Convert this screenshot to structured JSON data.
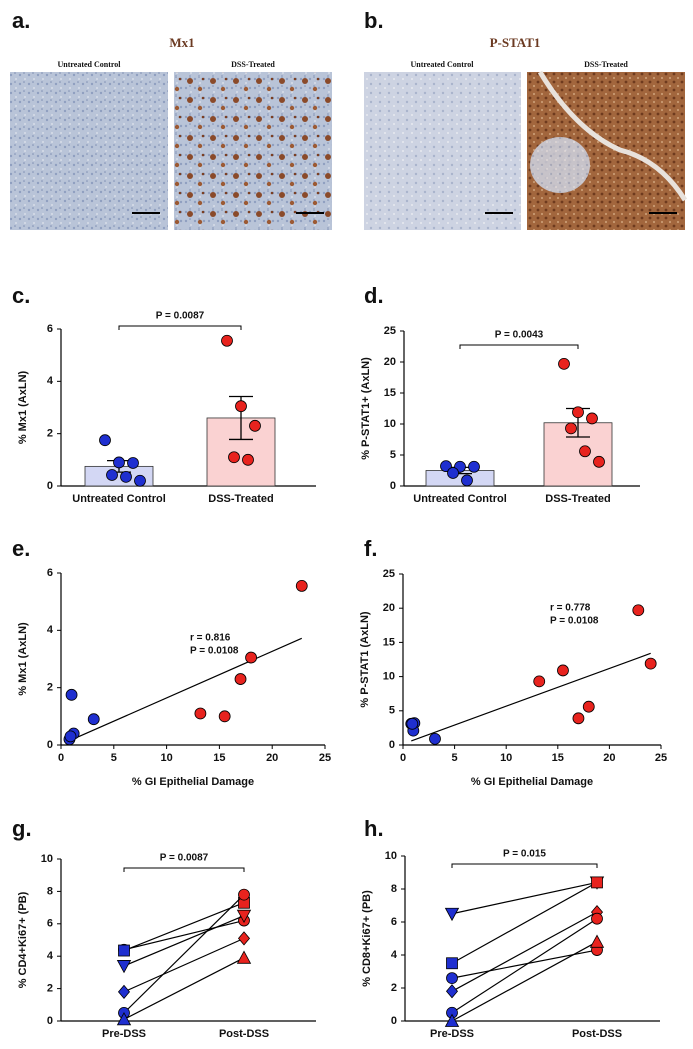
{
  "image_panels": [
    {
      "panel_label": "a.",
      "title": "Mx1",
      "images": [
        {
          "caption": "Untreated Control"
        },
        {
          "caption": "DSS-Treated"
        }
      ]
    },
    {
      "panel_label": "b.",
      "title": "P-STAT1",
      "images": [
        {
          "caption": "Untreated Control"
        },
        {
          "caption": "DSS-Treated"
        }
      ]
    }
  ],
  "chart_data": [
    {
      "type": "bar",
      "panel_label": "c.",
      "ylabel": "% Mx1  (AxLN)",
      "categories": [
        "Untreated Control",
        "DSS-Treated"
      ],
      "values": [
        0.75,
        2.6
      ],
      "errors": [
        0.22,
        0.82
      ],
      "points": [
        [
          1.75,
          0.9,
          0.88,
          0.42,
          0.35,
          0.2
        ],
        [
          5.55,
          3.05,
          2.3,
          1.1,
          1.0
        ]
      ],
      "bar_colors": [
        "#d3d7f4",
        "#fad2d2"
      ],
      "point_colors": [
        "#1f2fd0",
        "#e8231e"
      ],
      "annotation": "P = 0.0087",
      "ylim": [
        0,
        6
      ],
      "yticks": [
        0,
        2,
        4,
        6
      ]
    },
    {
      "type": "bar",
      "panel_label": "d.",
      "ylabel": "% P-STAT1+ (AxLN)",
      "categories": [
        "Untreated Control",
        "DSS-Treated"
      ],
      "values": [
        2.5,
        10.2
      ],
      "errors": [
        0.5,
        2.3
      ],
      "points": [
        [
          3.2,
          3.1,
          3.1,
          2.1,
          0.9
        ],
        [
          19.7,
          11.9,
          10.9,
          9.3,
          5.6,
          3.9
        ]
      ],
      "bar_colors": [
        "#d3d7f4",
        "#fad2d2"
      ],
      "point_colors": [
        "#1f2fd0",
        "#e8231e"
      ],
      "annotation": "P = 0.0043",
      "ylim": [
        0,
        25
      ],
      "yticks": [
        0,
        5,
        10,
        15,
        20,
        25
      ]
    },
    {
      "type": "scatter",
      "panel_label": "e.",
      "ylabel": "% Mx1 (AxLN)",
      "xlabel": "% GI Epithelial Damage",
      "series": [
        {
          "color": "#1f2fd0",
          "x": [
            1.0,
            1.2,
            0.8,
            0.9,
            3.1
          ],
          "y": [
            1.75,
            0.4,
            0.2,
            0.3,
            0.9
          ]
        },
        {
          "color": "#e8231e",
          "x": [
            13.2,
            15.5,
            17.0,
            18.0,
            22.8
          ],
          "y": [
            1.1,
            1.0,
            2.3,
            3.05,
            5.55
          ]
        }
      ],
      "fit": {
        "x": [
          0.8,
          22.8
        ],
        "y": [
          0.15,
          3.72
        ]
      },
      "annotations": [
        "r = 0.816",
        "P = 0.0108"
      ],
      "xlim": [
        0,
        25
      ],
      "xticks": [
        0,
        5,
        10,
        15,
        20,
        25
      ],
      "ylim": [
        0,
        6
      ],
      "yticks": [
        0,
        2,
        4,
        6
      ]
    },
    {
      "type": "scatter",
      "panel_label": "f.",
      "ylabel": "% P-STAT1 (AxLN)",
      "xlabel": "% GI Epithelial Damage",
      "series": [
        {
          "color": "#1f2fd0",
          "x": [
            0.8,
            1.1,
            1.0,
            0.9,
            3.1
          ],
          "y": [
            3.1,
            3.2,
            2.1,
            3.1,
            0.9
          ]
        },
        {
          "color": "#e8231e",
          "x": [
            13.2,
            15.5,
            17.0,
            18.0,
            22.8,
            24.0
          ],
          "y": [
            9.3,
            10.9,
            3.9,
            5.6,
            19.7,
            11.9
          ]
        }
      ],
      "fit": {
        "x": [
          0.8,
          24.0
        ],
        "y": [
          0.6,
          13.4
        ]
      },
      "annotations": [
        "r = 0.778",
        "P = 0.0108"
      ],
      "xlim": [
        0,
        25
      ],
      "xticks": [
        0,
        5,
        10,
        15,
        20,
        25
      ],
      "ylim": [
        0,
        25
      ],
      "yticks": [
        0,
        5,
        10,
        15,
        20,
        25
      ]
    },
    {
      "type": "paired",
      "panel_label": "g.",
      "ylabel": "% CD4+Ki67+ (PB)",
      "categories": [
        "Pre-DSS",
        "Post-DSS"
      ],
      "colors": [
        "#1f2fd0",
        "#e8231e"
      ],
      "series": [
        {
          "marker": "circle",
          "values": [
            4.4,
            6.2
          ]
        },
        {
          "marker": "square",
          "values": [
            4.35,
            7.3
          ]
        },
        {
          "marker": "triangle-down",
          "values": [
            3.4,
            6.5
          ]
        },
        {
          "marker": "diamond",
          "values": [
            1.8,
            5.1
          ]
        },
        {
          "marker": "circle",
          "values": [
            0.5,
            7.8
          ]
        },
        {
          "marker": "triangle-up",
          "values": [
            0.1,
            3.9
          ]
        }
      ],
      "annotation": "P = 0.0087",
      "ylim": [
        0,
        10
      ],
      "yticks": [
        0,
        2,
        4,
        6,
        8,
        10
      ]
    },
    {
      "type": "paired",
      "panel_label": "h.",
      "ylabel": "% CD8+Ki67+ (PB)",
      "categories": [
        "Pre-DSS",
        "Post-DSS"
      ],
      "colors": [
        "#1f2fd0",
        "#e8231e"
      ],
      "series": [
        {
          "marker": "triangle-down",
          "values": [
            6.5,
            8.4
          ]
        },
        {
          "marker": "square",
          "values": [
            3.5,
            8.4
          ]
        },
        {
          "marker": "circle",
          "values": [
            2.6,
            4.3
          ]
        },
        {
          "marker": "diamond",
          "values": [
            1.8,
            6.6
          ]
        },
        {
          "marker": "circle",
          "values": [
            0.5,
            6.2
          ]
        },
        {
          "marker": "triangle-up",
          "values": [
            0.0,
            4.8
          ]
        }
      ],
      "annotation": "P = 0.015",
      "ylim": [
        0,
        10
      ],
      "yticks": [
        0,
        2,
        4,
        6,
        8,
        10
      ]
    }
  ]
}
